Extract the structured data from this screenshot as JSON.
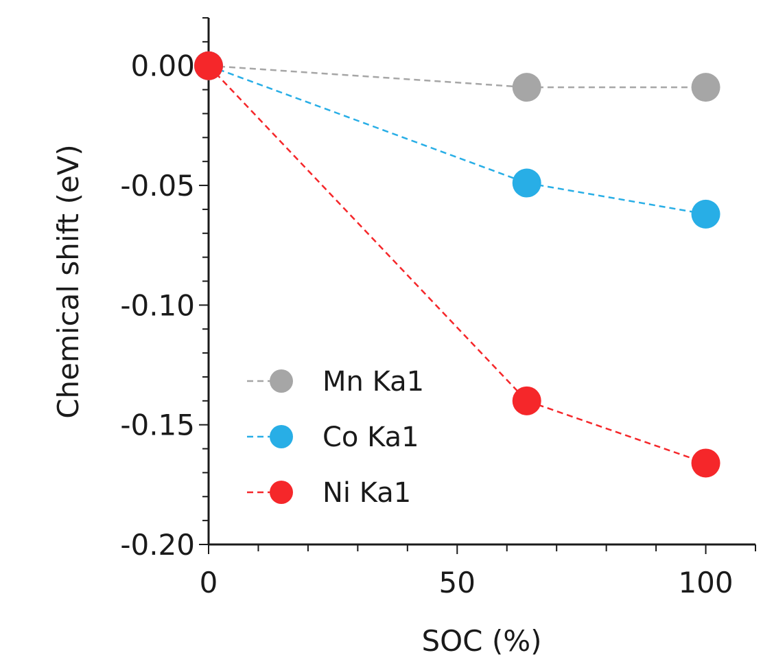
{
  "chart_data": {
    "type": "scatter",
    "title": "",
    "xlabel": "SOC (%)",
    "ylabel": "Chemical shift (eV)",
    "xlim": [
      0,
      110
    ],
    "ylim": [
      -0.2,
      0.02
    ],
    "x_ticks": [
      0,
      50,
      100
    ],
    "x_tick_labels": [
      "0",
      "50",
      "100"
    ],
    "y_ticks": [
      0.0,
      -0.05,
      -0.1,
      -0.15,
      -0.2
    ],
    "y_tick_labels": [
      "0.00",
      "-0.05",
      "-0.10",
      "-0.15",
      "-0.20"
    ],
    "grid": false,
    "legend_position": "bottom-left",
    "series": [
      {
        "name": "Mn Ka1",
        "color": "#a6a6a6",
        "line_style": "dashed",
        "x": [
          0,
          64,
          100
        ],
        "y": [
          0.0,
          -0.009,
          -0.009
        ]
      },
      {
        "name": "Co Ka1",
        "color": "#28aee6",
        "line_style": "dashed",
        "x": [
          0,
          64,
          100
        ],
        "y": [
          0.0,
          -0.049,
          -0.062
        ]
      },
      {
        "name": "Ni Ka1",
        "color": "#f5272a",
        "line_style": "dashed",
        "x": [
          0,
          64,
          100
        ],
        "y": [
          0.0,
          -0.14,
          -0.166
        ]
      }
    ]
  }
}
